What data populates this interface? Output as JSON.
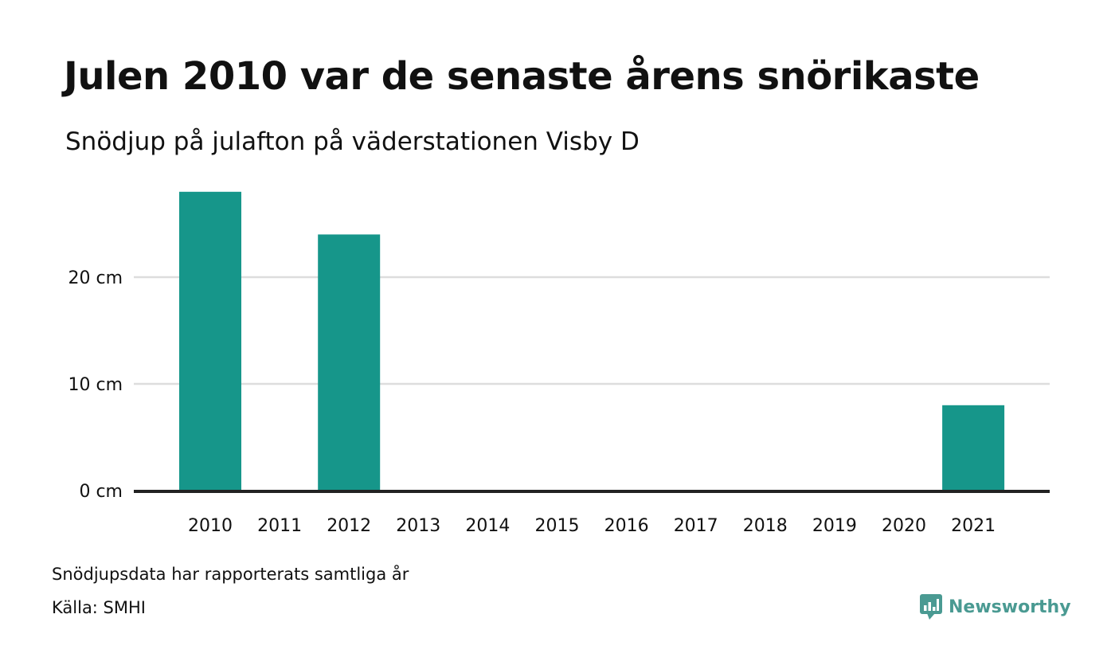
{
  "title": "Julen 2010 var de senaste årens snörikaste",
  "subtitle": "Snödjup på julafton på väderstationen Visby D",
  "notes": {
    "line1": "Snödjupsdata har rapporterats samtliga år",
    "line2": "Källa: SMHI"
  },
  "brand": {
    "name": "Newsworthy",
    "icon": "newsworthy-logo-icon"
  },
  "colors": {
    "bar": "#16968a",
    "grid": "#dddddd",
    "axis": "#222222",
    "brand": "#4a9a92"
  },
  "chart_data": {
    "type": "bar",
    "categories": [
      "2010",
      "2011",
      "2012",
      "2013",
      "2014",
      "2015",
      "2016",
      "2017",
      "2018",
      "2019",
      "2020",
      "2021"
    ],
    "values": [
      28,
      0,
      24,
      0,
      0,
      0,
      0,
      0,
      0,
      0,
      0,
      8
    ],
    "yticks": [
      0,
      10,
      20
    ],
    "ytick_labels": [
      "0 cm",
      "10 cm",
      "20 cm"
    ],
    "ylim": [
      0,
      30
    ],
    "grid": true,
    "xlabel": "",
    "ylabel": ""
  }
}
